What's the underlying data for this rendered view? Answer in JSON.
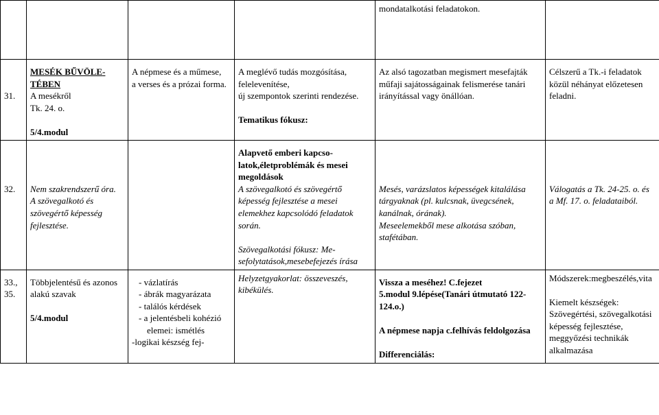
{
  "row1": {
    "col4": "mondatalkotási feladatokon."
  },
  "row2": {
    "num": "31.",
    "c1a": "MESÉK BŰVÖLE­TÉBEN",
    "c1b": "A mesékről",
    "c1c": "Tk. 24. o.",
    "c1d": "5/4.modul",
    "c2": "A népmese és a műme­se,\na verses és a prózai forma.",
    "c3a": "A meglévő tudás mozgósí­tása, felelevenítése,\núj szempontok szerinti ren­dezése.",
    "c3b": "Tematikus fókusz:",
    "c4": "Az alsó tagozatban megismert mesefajták műfaji sajátosságai­nak felismerése tanári irányítás­sal vagy önállóan.",
    "c5": "Célszerű a Tk.-i fel­adatok közül néhá­nyat előzetesen felad­ni."
  },
  "row3": {
    "num": "32.",
    "c1a": "Nem szakrendszerű óra.",
    "c1b": "A szövegalkotó és szövegértő képesség fejlesztése.",
    "c3a": "Alapvető emberi kapcso­latok,életproblémák és mesei megoldások",
    "c3b": "A szövegalkotó és szöveg­értő képesség fejlesztése a mesei elemekhez kapcsoló­dó feladatok során.",
    "c3c": "Szövegalkotási fókusz: Me­sefolytatások,mesebefejezés írása",
    "c4a": "Mesés, varázslatos képességek kitalálása tárgyaknak (pl. kulcs­nak, üvegcsének, kanálnak, órá­nak).",
    "c4b": "Meseelemekből mese alkotása szóban, stafétában.",
    "c5": "Válogatás a Tk. 24-25. o. és a Mf. 17. o. feladataiból."
  },
  "row4": {
    "num": "33., 35.",
    "c1a": "Többjelentésű és azonos alakú szavak",
    "c1b": "5/4.modul",
    "c2_items": [
      "vázlatírás",
      "ábrák magyaráza­ta",
      "találós kérdések",
      "a jelentésbeli ko­hézió elemei: is­métlés"
    ],
    "c2_last": "-logikai készség fej-",
    "c3": "Helyzetgyakorlat: összeve­szés, kibékülés.",
    "c4a": "Vissza a meséhez! C.fejezet",
    "c4b": "5.modul 9.lépése(Tanári útmu­tató 122-124.o.)",
    "c4c": "A népmese napja c.felhívás feldolgozása",
    "c4d": "Differenciálás:",
    "c5a": "Módsze­rek:megbeszélés,vita",
    "c5b": "Kiemelt készségek:",
    "c5c": "Szövegértési, szöveg­alkotási képesség fejlesztése,",
    "c5d": "meggyőzési technikák alkalmazása"
  }
}
